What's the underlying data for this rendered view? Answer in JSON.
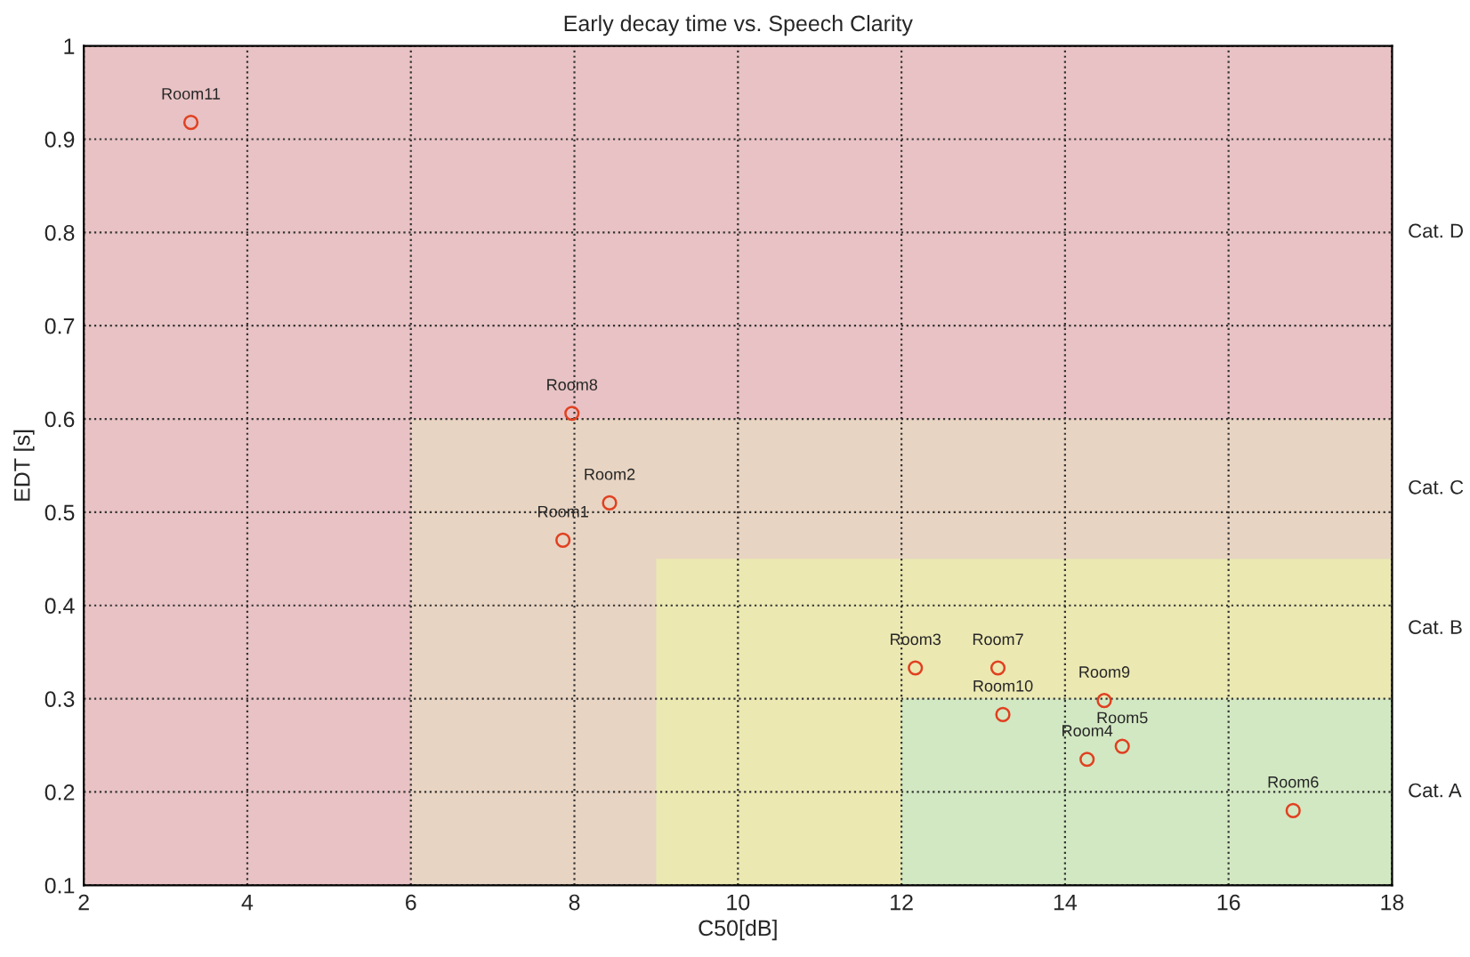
{
  "chart_data": {
    "type": "scatter",
    "title": "Early decay time vs. Speech Clarity",
    "xlabel": "C50[dB]",
    "ylabel": "EDT [s]",
    "x": [
      7.86,
      8.43,
      12.17,
      14.27,
      14.7,
      16.79,
      13.18,
      7.97,
      14.48,
      13.24,
      3.31
    ],
    "series": [
      {
        "color": "#e04020",
        "values": [
          0.47,
          0.51,
          0.333,
          0.235,
          0.249,
          0.18,
          0.333,
          0.606,
          0.298,
          0.283,
          0.918
        ]
      }
    ],
    "marker": "circle",
    "annotations": [
      {
        "text": "Room1",
        "x": 7.86,
        "y": 0.47
      },
      {
        "text": "Room2",
        "x": 8.43,
        "y": 0.51
      },
      {
        "text": "Room3",
        "x": 12.17,
        "y": 0.333
      },
      {
        "text": "Room4",
        "x": 14.27,
        "y": 0.235
      },
      {
        "text": "Room5",
        "x": 14.7,
        "y": 0.249
      },
      {
        "text": "Room6",
        "x": 16.79,
        "y": 0.18
      },
      {
        "text": "Room7",
        "x": 13.18,
        "y": 0.333
      },
      {
        "text": "Room8",
        "x": 7.97,
        "y": 0.606
      },
      {
        "text": "Room9",
        "x": 14.48,
        "y": 0.298
      },
      {
        "text": "Room10",
        "x": 13.24,
        "y": 0.283
      },
      {
        "text": "Room11",
        "x": 3.31,
        "y": 0.918
      }
    ],
    "bands": [
      {
        "axis": "x",
        "from": 12,
        "to": 18,
        "color": "#d2e8c2"
      },
      {
        "axis": "y",
        "from": 0.1,
        "to": 0.3,
        "label": "Cat. A",
        "color": "#d2e8c2"
      },
      {
        "axis": "x",
        "from": 9,
        "to": 12,
        "color": "#ebe8b2"
      },
      {
        "axis": "y",
        "from": 0.3,
        "to": 0.45,
        "label": "Cat. B",
        "color": "#ebe8b2"
      },
      {
        "axis": "x",
        "from": 6,
        "to": 9,
        "color": "#e8d4c2"
      },
      {
        "axis": "y",
        "from": 0.45,
        "to": 0.6,
        "label": "Cat. C",
        "color": "#e8d4c2"
      },
      {
        "axis": "x",
        "from": 2,
        "to": 6,
        "color": "#e8c2c4"
      },
      {
        "axis": "y",
        "from": 0.6,
        "to": 1,
        "label": "Cat. D",
        "color": "#e8c2c4"
      }
    ],
    "xlim": [
      2,
      18
    ],
    "xticks": [
      2,
      4,
      6,
      8,
      10,
      12,
      14,
      16,
      18
    ],
    "ylim": [
      0.1,
      1
    ],
    "yticks": [
      0.1,
      0.2,
      0.3,
      0.4,
      0.5,
      0.6,
      0.7,
      0.8,
      0.9,
      1
    ],
    "grid": true,
    "legend": false
  }
}
